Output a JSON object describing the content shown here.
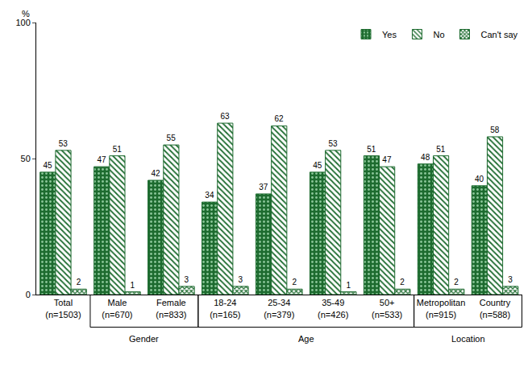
{
  "chart_data": {
    "type": "bar",
    "y_label": "%",
    "categories": [
      "Total (n=1503)",
      "Male (n=670)",
      "Female (n=833)",
      "18-24 (n=165)",
      "25-34 (n=379)",
      "35-49 (n=426)",
      "50+ (n=533)",
      "Metropolitan (n=915)",
      "Country (n=588)"
    ],
    "category_groups": [
      {
        "label": "Gender",
        "categories": [
          "Male (n=670)",
          "Female (n=833)"
        ]
      },
      {
        "label": "Age",
        "categories": [
          "18-24 (n=165)",
          "25-34 (n=379)",
          "35-49 (n=426)",
          "50+ (n=533)"
        ]
      },
      {
        "label": "Location",
        "categories": [
          "Metropolitan (n=915)",
          "Country (n=588)"
        ]
      }
    ],
    "series": [
      {
        "name": "Yes",
        "color": "#1d6b2f",
        "marker": "dots",
        "values": [
          45,
          47,
          42,
          34,
          37,
          45,
          51,
          48,
          40
        ]
      },
      {
        "name": "No",
        "color": "#1d6b2f",
        "marker": "hatch",
        "values": [
          53,
          51,
          55,
          63,
          62,
          53,
          47,
          51,
          58
        ]
      },
      {
        "name": "Can't say",
        "color": "#1d6b2f",
        "marker": "checker",
        "values": [
          2,
          1,
          3,
          3,
          2,
          1,
          2,
          2,
          3
        ]
      }
    ],
    "ylim": [
      0,
      100
    ],
    "yticks": [
      0,
      50,
      100
    ],
    "grid": false,
    "legend": "upper right",
    "data_labels": true
  }
}
